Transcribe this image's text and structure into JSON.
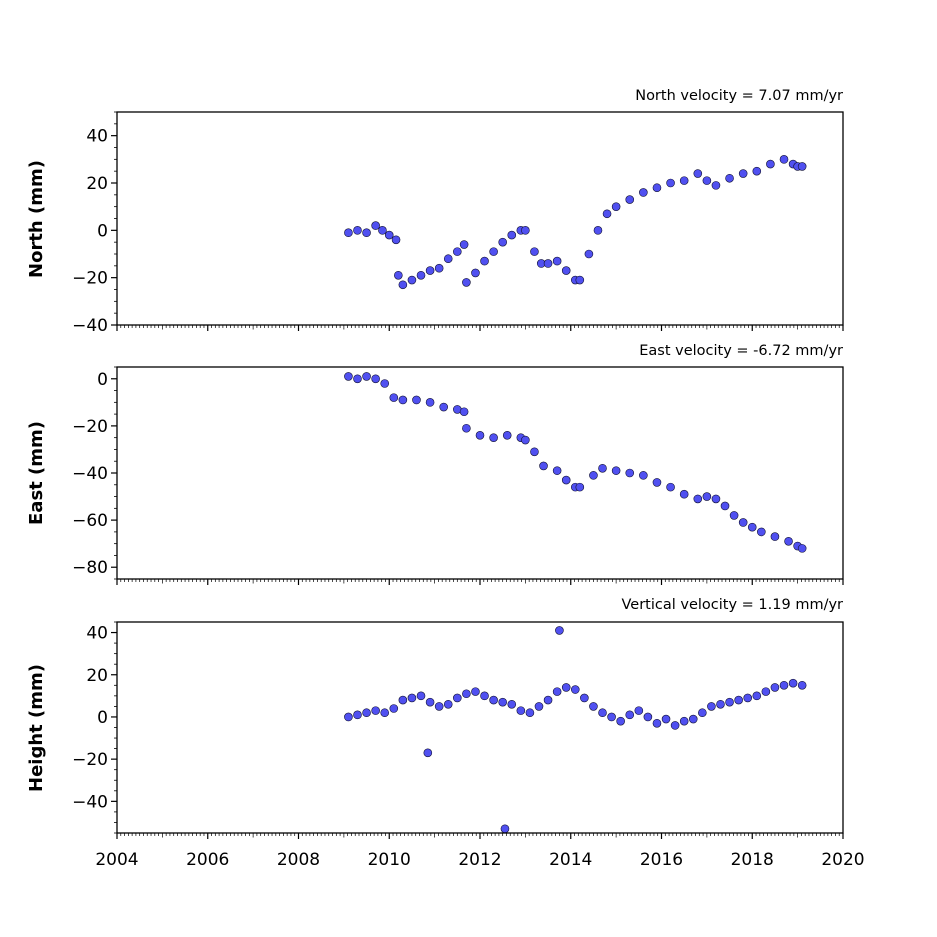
{
  "chart_data": [
    {
      "type": "scatter",
      "title": "North velocity = 7.07 mm/yr",
      "ylabel": "North (mm)",
      "xlabel": "",
      "xlim": [
        2004,
        2020
      ],
      "ylim": [
        -40,
        50
      ],
      "yticks": [
        -40,
        -20,
        0,
        20,
        40
      ],
      "xticks": [
        2004,
        2006,
        2008,
        2010,
        2012,
        2014,
        2016,
        2018,
        2020
      ],
      "show_xtick_labels": false,
      "marker_color": "#5050f0",
      "series": [
        {
          "x": [
            2009.1,
            2009.3,
            2009.5,
            2009.7,
            2009.85,
            2010.0,
            2010.15,
            2010.2,
            2010.3,
            2010.5,
            2010.7,
            2010.9,
            2011.1,
            2011.3,
            2011.5,
            2011.65,
            2011.7,
            2011.9,
            2012.1,
            2012.3,
            2012.5,
            2012.7,
            2012.9,
            2013.0,
            2013.2,
            2013.35,
            2013.5,
            2013.7,
            2013.9,
            2014.1,
            2014.2,
            2014.4,
            2014.6,
            2014.8,
            2015.0,
            2015.3,
            2015.6,
            2015.9,
            2016.2,
            2016.5,
            2016.8,
            2017.0,
            2017.2,
            2017.5,
            2017.8,
            2018.1,
            2018.4,
            2018.7,
            2018.9,
            2019.0,
            2019.1
          ],
          "y": [
            -1,
            0,
            -1,
            2,
            0,
            -2,
            -4,
            -19,
            -23,
            -21,
            -19,
            -17,
            -16,
            -12,
            -9,
            -6,
            -22,
            -18,
            -13,
            -9,
            -5,
            -2,
            0,
            0,
            -9,
            -14,
            -14,
            -13,
            -17,
            -21,
            -21,
            -10,
            0,
            7,
            10,
            13,
            16,
            18,
            20,
            21,
            24,
            21,
            19,
            22,
            24,
            25,
            28,
            30,
            28,
            27,
            27
          ]
        }
      ]
    },
    {
      "type": "scatter",
      "title": "East velocity = -6.72 mm/yr",
      "ylabel": "East (mm)",
      "xlabel": "",
      "xlim": [
        2004,
        2020
      ],
      "ylim": [
        -85,
        5
      ],
      "yticks": [
        -80,
        -60,
        -40,
        -20,
        0
      ],
      "xticks": [
        2004,
        2006,
        2008,
        2010,
        2012,
        2014,
        2016,
        2018,
        2020
      ],
      "show_xtick_labels": false,
      "marker_color": "#5050f0",
      "series": [
        {
          "x": [
            2009.1,
            2009.3,
            2009.5,
            2009.7,
            2009.9,
            2010.1,
            2010.3,
            2010.6,
            2010.9,
            2011.2,
            2011.5,
            2011.65,
            2011.7,
            2012.0,
            2012.3,
            2012.6,
            2012.9,
            2013.0,
            2013.2,
            2013.4,
            2013.7,
            2013.9,
            2014.1,
            2014.2,
            2014.5,
            2014.7,
            2015.0,
            2015.3,
            2015.6,
            2015.9,
            2016.2,
            2016.5,
            2016.8,
            2017.0,
            2017.2,
            2017.4,
            2017.6,
            2017.8,
            2018.0,
            2018.2,
            2018.5,
            2018.8,
            2019.0,
            2019.1
          ],
          "y": [
            1,
            0,
            1,
            0,
            -2,
            -8,
            -9,
            -9,
            -10,
            -12,
            -13,
            -14,
            -21,
            -24,
            -25,
            -24,
            -25,
            -26,
            -31,
            -37,
            -39,
            -43,
            -46,
            -46,
            -41,
            -38,
            -39,
            -40,
            -41,
            -44,
            -46,
            -49,
            -51,
            -50,
            -51,
            -54,
            -58,
            -61,
            -63,
            -65,
            -67,
            -69,
            -71,
            -72
          ]
        }
      ]
    },
    {
      "type": "scatter",
      "title": "Vertical velocity = 1.19 mm/yr",
      "ylabel": "Height (mm)",
      "xlabel": "",
      "xlim": [
        2004,
        2020
      ],
      "ylim": [
        -55,
        45
      ],
      "yticks": [
        -40,
        -20,
        0,
        20,
        40
      ],
      "xticks": [
        2004,
        2006,
        2008,
        2010,
        2012,
        2014,
        2016,
        2018,
        2020
      ],
      "xtick_labels": [
        "2004",
        "2006",
        "2008",
        "2010",
        "2012",
        "2014",
        "2016",
        "2018",
        "2020"
      ],
      "show_xtick_labels": true,
      "marker_color": "#5050f0",
      "series": [
        {
          "x": [
            2009.1,
            2009.3,
            2009.5,
            2009.7,
            2009.9,
            2010.1,
            2010.3,
            2010.5,
            2010.7,
            2010.9,
            2011.1,
            2011.3,
            2011.5,
            2011.7,
            2011.9,
            2012.1,
            2012.3,
            2012.5,
            2012.7,
            2012.9,
            2013.1,
            2013.3,
            2013.5,
            2013.7,
            2013.9,
            2014.1,
            2014.3,
            2014.5,
            2014.7,
            2014.9,
            2015.1,
            2015.3,
            2015.5,
            2015.7,
            2015.9,
            2016.1,
            2016.3,
            2016.5,
            2016.7,
            2016.9,
            2017.1,
            2017.3,
            2017.5,
            2017.7,
            2017.9,
            2018.1,
            2018.3,
            2018.5,
            2018.7,
            2018.9,
            2019.1,
            2010.85,
            2012.55,
            2013.75
          ],
          "y": [
            0,
            1,
            2,
            3,
            2,
            4,
            8,
            9,
            10,
            7,
            5,
            6,
            9,
            11,
            12,
            10,
            8,
            7,
            6,
            3,
            2,
            5,
            8,
            12,
            14,
            13,
            9,
            5,
            2,
            0,
            -2,
            1,
            3,
            0,
            -3,
            -1,
            -4,
            -2,
            -1,
            2,
            5,
            6,
            7,
            8,
            9,
            10,
            12,
            14,
            15,
            16,
            15,
            -17,
            -53,
            41
          ]
        }
      ]
    }
  ]
}
